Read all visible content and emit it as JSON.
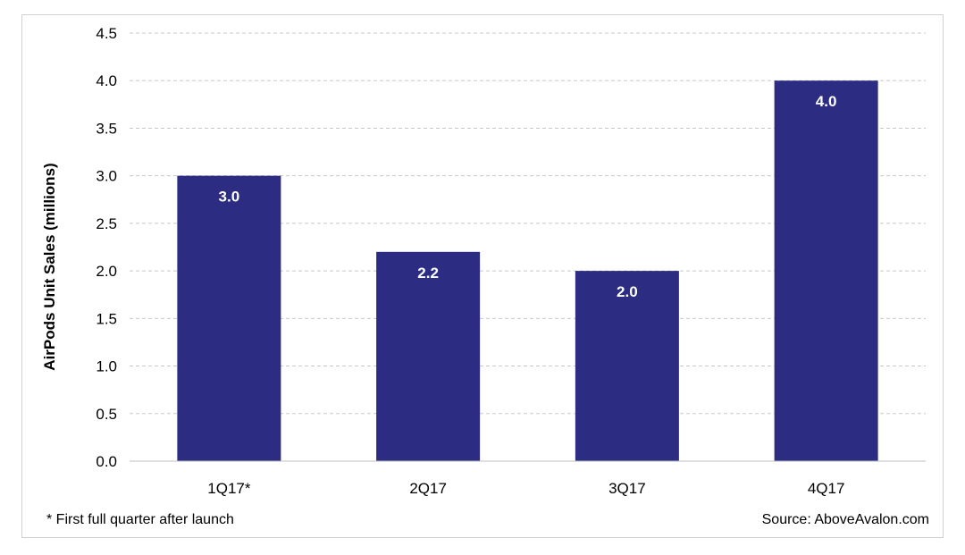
{
  "chart_data": {
    "type": "bar",
    "categories": [
      "1Q17*",
      "2Q17",
      "3Q17",
      "4Q17"
    ],
    "values": [
      3.0,
      2.2,
      2.0,
      4.0
    ],
    "value_labels": [
      "3.0",
      "2.2",
      "2.0",
      "4.0"
    ],
    "title": "",
    "xlabel": "",
    "ylabel": "AirPods Unit Sales (millions)",
    "ylim": [
      0,
      4.5
    ],
    "yticks": [
      "0.0",
      "0.5",
      "1.0",
      "1.5",
      "2.0",
      "2.5",
      "3.0",
      "3.5",
      "4.0",
      "4.5"
    ],
    "ytick_values": [
      0,
      0.5,
      1.0,
      1.5,
      2.0,
      2.5,
      3.0,
      3.5,
      4.0,
      4.5
    ],
    "grid": true,
    "bar_color": "#2B2C82",
    "grid_color": "#c8c8c8"
  },
  "footnote": "* First full quarter after launch",
  "source": "Source: AboveAvalon.com"
}
